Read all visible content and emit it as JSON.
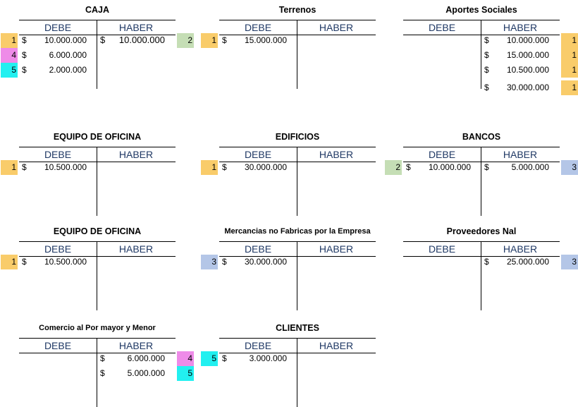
{
  "colors": {
    "ref1": "#f9cc6a",
    "ref2": "#c5deb5",
    "ref3": "#b4c6e7",
    "ref4": "#ee8be8",
    "ref5": "#22f0f0",
    "header_text": "#1f3864"
  },
  "labels": {
    "debe": "DEBE",
    "haber": "HABER",
    "currency": "$"
  },
  "accounts": [
    {
      "title": "CAJA",
      "debe": [
        {
          "ref": "1",
          "amount": "10.000.000"
        },
        {
          "ref": "4",
          "amount": "6.000.000"
        },
        {
          "ref": "5",
          "amount": "2.000.000"
        }
      ],
      "haber": [
        {
          "ref": "2",
          "amount": "10.000.000"
        }
      ]
    },
    {
      "title": "Terrenos",
      "debe": [
        {
          "ref": "1",
          "amount": "15.000.000"
        }
      ],
      "haber": []
    },
    {
      "title": "Aportes Sociales",
      "debe": [],
      "haber": [
        {
          "ref": "1",
          "amount": "10.000.000"
        },
        {
          "ref": "1",
          "amount": "15.000.000"
        },
        {
          "ref": "1",
          "amount": "10.500.000"
        },
        {
          "ref": "1",
          "amount": "30.000.000"
        }
      ]
    },
    {
      "title": "EQUIPO DE OFICINA",
      "debe": [
        {
          "ref": "1",
          "amount": "10.500.000"
        }
      ],
      "haber": []
    },
    {
      "title": "EDIFICIOS",
      "debe": [
        {
          "ref": "1",
          "amount": "30.000.000"
        }
      ],
      "haber": []
    },
    {
      "title": "BANCOS",
      "debe": [
        {
          "ref": "2",
          "amount": "10.000.000"
        }
      ],
      "haber": [
        {
          "ref": "3",
          "amount": "5.000.000"
        }
      ]
    },
    {
      "title": "EQUIPO DE OFICINA",
      "debe": [
        {
          "ref": "1",
          "amount": "10.500.000"
        }
      ],
      "haber": []
    },
    {
      "title": "Mercancias no Fabricas por la Empresa",
      "debe": [
        {
          "ref": "3",
          "amount": "30.000.000"
        }
      ],
      "haber": []
    },
    {
      "title": "Proveedores Nal",
      "debe": [],
      "haber": [
        {
          "ref": "3",
          "amount": "25.000.000"
        }
      ]
    },
    {
      "title": "Comercio al Por mayor y Menor",
      "debe": [],
      "haber": [
        {
          "ref": "4",
          "amount": "6.000.000"
        },
        {
          "ref": "5",
          "amount": "5.000.000"
        }
      ]
    },
    {
      "title": "CLIENTES",
      "debe": [
        {
          "ref": "5",
          "amount": "3.000.000"
        }
      ],
      "haber": []
    }
  ]
}
